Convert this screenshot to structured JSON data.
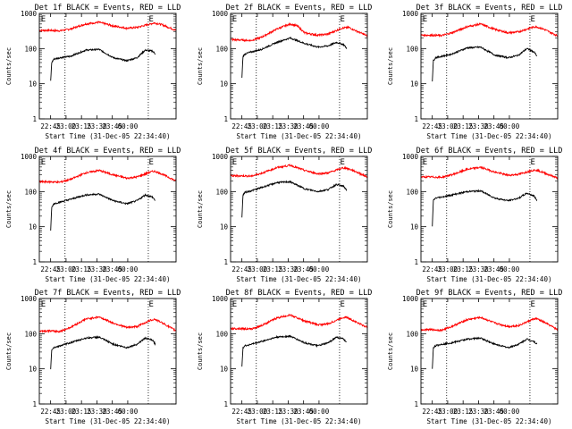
{
  "chart_data": [
    {
      "type": "line",
      "title": "Det 1f BLACK = Events, RED = LLD",
      "xlabel": "Start Time (31-Dec-05 22:34:40)",
      "ylabel": "Counts/sec",
      "xticks": [
        "22:45",
        "23:00",
        "23:15",
        "23:30",
        "23:45",
        "00:00"
      ],
      "yticks": [
        "1",
        "10",
        "100",
        "1000"
      ],
      "ylim": [
        1,
        1000
      ],
      "yscale": "log",
      "markers": [
        "E",
        "E"
      ],
      "series": [
        {
          "color": "#ff0000",
          "x": [
            0,
            10,
            20,
            30,
            45,
            58,
            72,
            85,
            95,
            108,
            112,
            120,
            133
          ],
          "y": [
            330,
            330,
            320,
            360,
            500,
            560,
            440,
            380,
            400,
            500,
            540,
            470,
            330
          ]
        },
        {
          "color": "#000000",
          "x": [
            11,
            12,
            14,
            20,
            30,
            45,
            58,
            72,
            85,
            95,
            103,
            110,
            113
          ],
          "y": [
            12,
            40,
            50,
            55,
            60,
            90,
            95,
            55,
            45,
            55,
            90,
            85,
            70
          ]
        }
      ]
    },
    {
      "type": "line",
      "title": "Det 2f BLACK = Events, RED = LLD",
      "xlabel": "Start Time (31-Dec-05 22:34:40)",
      "ylabel": "Counts/sec",
      "xticks": [
        "22:45",
        "23:00",
        "23:15",
        "23:30",
        "23:45",
        "00:00"
      ],
      "yticks": [
        "1",
        "10",
        "100",
        "1000"
      ],
      "ylim": [
        1,
        1000
      ],
      "yscale": "log",
      "markers": [
        "E",
        "E"
      ],
      "series": [
        {
          "color": "#ff0000",
          "x": [
            0,
            10,
            20,
            30,
            45,
            58,
            65,
            72,
            85,
            95,
            108,
            115,
            122,
            133
          ],
          "y": [
            180,
            175,
            170,
            210,
            360,
            500,
            440,
            280,
            240,
            260,
            380,
            400,
            320,
            230
          ]
        },
        {
          "color": "#000000",
          "x": [
            11,
            12,
            14,
            20,
            30,
            45,
            58,
            72,
            85,
            95,
            103,
            110,
            113
          ],
          "y": [
            15,
            60,
            70,
            80,
            95,
            150,
            200,
            140,
            110,
            120,
            150,
            130,
            100
          ]
        }
      ]
    },
    {
      "type": "line",
      "title": "Det 3f BLACK = Events, RED = LLD",
      "xlabel": "Start Time (31-Dec-05 22:34:40)",
      "ylabel": "Counts/sec",
      "xticks": [
        "22:45",
        "23:00",
        "23:15",
        "23:30",
        "23:45",
        "00:00"
      ],
      "yticks": [
        "1",
        "10",
        "100",
        "1000"
      ],
      "ylim": [
        1,
        1000
      ],
      "yscale": "log",
      "markers": [
        "E",
        "E"
      ],
      "series": [
        {
          "color": "#ff0000",
          "x": [
            0,
            10,
            20,
            30,
            45,
            58,
            72,
            85,
            95,
            108,
            112,
            120,
            133
          ],
          "y": [
            240,
            240,
            235,
            280,
            420,
            500,
            350,
            280,
            300,
            400,
            420,
            350,
            230
          ]
        },
        {
          "color": "#000000",
          "x": [
            11,
            12,
            14,
            20,
            30,
            45,
            58,
            72,
            85,
            95,
            103,
            110,
            113
          ],
          "y": [
            12,
            45,
            55,
            60,
            70,
            105,
            110,
            65,
            55,
            65,
            100,
            80,
            60
          ]
        }
      ]
    },
    {
      "type": "line",
      "title": "Det 4f BLACK = Events, RED = LLD",
      "xlabel": "Start Time (31-Dec-05 22:34:40)",
      "ylabel": "Counts/sec",
      "xticks": [
        "22:45",
        "23:00",
        "23:15",
        "23:30",
        "23:45",
        "00:00"
      ],
      "yticks": [
        "1",
        "10",
        "100",
        "1000"
      ],
      "ylim": [
        1,
        1000
      ],
      "yscale": "log",
      "markers": [
        "E",
        "E"
      ],
      "series": [
        {
          "color": "#ff0000",
          "x": [
            0,
            10,
            20,
            30,
            45,
            58,
            72,
            85,
            95,
            108,
            112,
            120,
            133
          ],
          "y": [
            190,
            190,
            185,
            220,
            340,
            400,
            300,
            240,
            260,
            360,
            380,
            310,
            200
          ]
        },
        {
          "color": "#000000",
          "x": [
            11,
            12,
            14,
            20,
            30,
            45,
            58,
            72,
            85,
            95,
            103,
            110,
            113
          ],
          "y": [
            8,
            35,
            45,
            50,
            60,
            80,
            85,
            55,
            45,
            55,
            80,
            70,
            55
          ]
        }
      ]
    },
    {
      "type": "line",
      "title": "Det 5f BLACK = Events, RED = LLD",
      "xlabel": "Start Time (31-Dec-05 22:34:40)",
      "ylabel": "Counts/sec",
      "xticks": [
        "22:45",
        "23:00",
        "23:15",
        "23:30",
        "23:45",
        "00:00"
      ],
      "yticks": [
        "1",
        "10",
        "100",
        "1000"
      ],
      "ylim": [
        1,
        1000
      ],
      "yscale": "log",
      "markers": [
        "E",
        "E"
      ],
      "series": [
        {
          "color": "#ff0000",
          "x": [
            0,
            10,
            20,
            30,
            45,
            58,
            72,
            85,
            95,
            108,
            112,
            120,
            133
          ],
          "y": [
            280,
            280,
            275,
            330,
            480,
            560,
            400,
            320,
            340,
            460,
            470,
            390,
            260
          ]
        },
        {
          "color": "#000000",
          "x": [
            11,
            12,
            14,
            20,
            30,
            45,
            58,
            72,
            85,
            95,
            103,
            110,
            113
          ],
          "y": [
            18,
            80,
            95,
            105,
            130,
            180,
            190,
            120,
            100,
            115,
            160,
            140,
            110
          ]
        }
      ]
    },
    {
      "type": "line",
      "title": "Det 6f BLACK = Events, RED = LLD",
      "xlabel": "Start Time (31-Dec-05 22:34:40)",
      "ylabel": "Counts/sec",
      "xticks": [
        "22:45",
        "23:00",
        "23:15",
        "23:30",
        "23:45",
        "00:00"
      ],
      "yticks": [
        "1",
        "10",
        "100",
        "1000"
      ],
      "ylim": [
        1,
        1000
      ],
      "yscale": "log",
      "markers": [
        "E",
        "E"
      ],
      "series": [
        {
          "color": "#ff0000",
          "x": [
            0,
            10,
            20,
            30,
            45,
            58,
            72,
            85,
            95,
            108,
            112,
            120,
            133
          ],
          "y": [
            260,
            260,
            255,
            300,
            430,
            490,
            360,
            290,
            310,
            400,
            410,
            340,
            240
          ]
        },
        {
          "color": "#000000",
          "x": [
            11,
            12,
            14,
            20,
            30,
            45,
            58,
            72,
            85,
            95,
            103,
            110,
            113
          ],
          "y": [
            10,
            55,
            65,
            70,
            80,
            100,
            105,
            65,
            55,
            65,
            90,
            75,
            55
          ]
        }
      ]
    },
    {
      "type": "line",
      "title": "Det 7f BLACK = Events, RED = LLD",
      "xlabel": "Start Time (31-Dec-05 22:34:40)",
      "ylabel": "Counts/sec",
      "xticks": [
        "22:45",
        "23:00",
        "23:15",
        "23:30",
        "23:45",
        "00:00"
      ],
      "yticks": [
        "1",
        "10",
        "100",
        "1000"
      ],
      "ylim": [
        1,
        1000
      ],
      "yscale": "log",
      "markers": [
        "E",
        "E"
      ],
      "series": [
        {
          "color": "#ff0000",
          "x": [
            0,
            10,
            20,
            30,
            45,
            58,
            72,
            85,
            95,
            108,
            112,
            120,
            133
          ],
          "y": [
            120,
            120,
            115,
            150,
            260,
            300,
            200,
            150,
            160,
            240,
            260,
            200,
            120
          ]
        },
        {
          "color": "#000000",
          "x": [
            11,
            12,
            14,
            20,
            30,
            45,
            58,
            72,
            85,
            95,
            103,
            110,
            113
          ],
          "y": [
            10,
            35,
            40,
            45,
            55,
            75,
            80,
            50,
            40,
            50,
            75,
            65,
            50
          ]
        }
      ]
    },
    {
      "type": "line",
      "title": "Det 8f BLACK = Events, RED = LLD",
      "xlabel": "Start Time (31-Dec-05 22:34:40)",
      "ylabel": "Counts/sec",
      "xticks": [
        "22:45",
        "23:00",
        "23:15",
        "23:30",
        "23:45",
        "00:00"
      ],
      "yticks": [
        "1",
        "10",
        "100",
        "1000"
      ],
      "ylim": [
        1,
        1000
      ],
      "yscale": "log",
      "markers": [
        "E",
        "E"
      ],
      "series": [
        {
          "color": "#ff0000",
          "x": [
            0,
            10,
            20,
            30,
            45,
            58,
            72,
            85,
            95,
            108,
            112,
            120,
            133
          ],
          "y": [
            140,
            140,
            135,
            170,
            280,
            340,
            230,
            180,
            190,
            280,
            300,
            230,
            150
          ]
        },
        {
          "color": "#000000",
          "x": [
            11,
            12,
            14,
            20,
            30,
            45,
            58,
            72,
            85,
            95,
            103,
            110,
            113
          ],
          "y": [
            12,
            40,
            45,
            50,
            60,
            80,
            85,
            55,
            45,
            55,
            80,
            70,
            55
          ]
        }
      ]
    },
    {
      "type": "line",
      "title": "Det 9f BLACK = Events, RED = LLD",
      "xlabel": "Start Time (31-Dec-05 22:34:40)",
      "ylabel": "Counts/sec",
      "xticks": [
        "22:45",
        "23:00",
        "23:15",
        "23:30",
        "23:45",
        "00:00"
      ],
      "yticks": [
        "1",
        "10",
        "100",
        "1000"
      ],
      "ylim": [
        1,
        1000
      ],
      "yscale": "log",
      "markers": [
        "E",
        "E"
      ],
      "series": [
        {
          "color": "#ff0000",
          "x": [
            0,
            10,
            20,
            30,
            45,
            58,
            72,
            85,
            95,
            108,
            112,
            120,
            133
          ],
          "y": [
            130,
            130,
            125,
            160,
            250,
            290,
            200,
            160,
            170,
            250,
            270,
            210,
            130
          ]
        },
        {
          "color": "#000000",
          "x": [
            11,
            12,
            14,
            20,
            30,
            45,
            58,
            72,
            85,
            95,
            103,
            110,
            113
          ],
          "y": [
            10,
            40,
            45,
            50,
            55,
            70,
            75,
            50,
            40,
            50,
            70,
            60,
            50
          ]
        }
      ]
    }
  ]
}
